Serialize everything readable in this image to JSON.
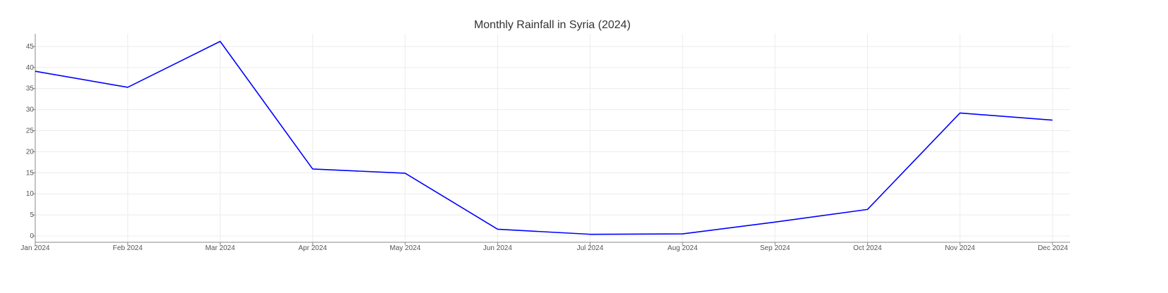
{
  "chart_data": {
    "type": "line",
    "title": "Monthly Rainfall in Syria (2024)",
    "xlabel": "",
    "ylabel": "",
    "categories": [
      "Jan 2024",
      "Feb 2024",
      "Mar 2024",
      "Apr 2024",
      "May 2024",
      "Jun 2024",
      "Jul 2024",
      "Aug 2024",
      "Sep 2024",
      "Oct 2024",
      "Nov 2024",
      "Dec 2024"
    ],
    "x": [
      "2024-01-01",
      "2024-02-01",
      "2024-03-01",
      "2024-04-01",
      "2024-05-01",
      "2024-06-01",
      "2024-07-01",
      "2024-08-01",
      "2024-09-01",
      "2024-10-01",
      "2024-11-01",
      "2024-12-01"
    ],
    "series": [
      {
        "name": "",
        "color": "#0000ff",
        "values": [
          39.1,
          35.3,
          46.2,
          15.9,
          14.9,
          1.6,
          0.4,
          0.5,
          3.3,
          6.3,
          29.2,
          27.5
        ]
      }
    ],
    "ylim": [
      -1.5,
      48
    ],
    "yticks": [
      0,
      5,
      10,
      15,
      20,
      25,
      30,
      35,
      40,
      45
    ],
    "grid": true,
    "legend": "none"
  }
}
